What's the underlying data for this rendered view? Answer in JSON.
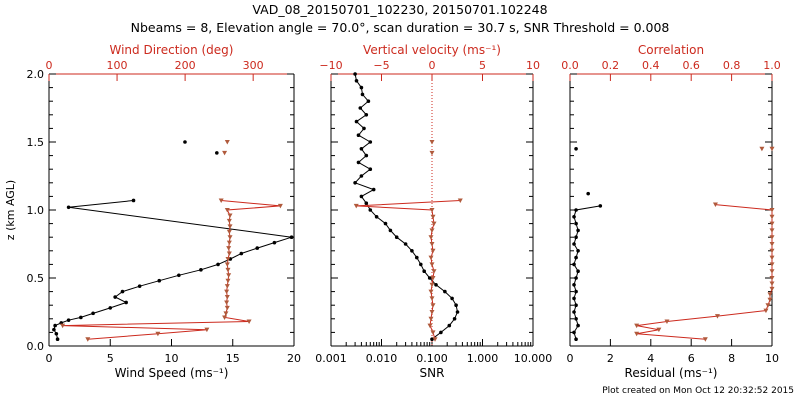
{
  "title_line1": "VAD_08_20150701_102230, 20150701.102248",
  "title_line2": "Nbeams = 8, Elevation angle = 70.0°, scan duration = 30.7 s, SNR Threshold = 0.008",
  "footer": "Plot created on Mon Oct 12 20:32:52 2015",
  "colors": {
    "black": "#000000",
    "red": "#cc2a1e",
    "brown": "#b05a3c"
  },
  "chart_data": [
    {
      "type": "line",
      "panel": "wind",
      "ylabel": "z (km AGL)",
      "ylim": [
        0,
        2.0
      ],
      "yticks": [
        "0.0",
        "0.5",
        "1.0",
        "1.5",
        "2.0"
      ],
      "bottom_axis": {
        "label": "Wind Speed (ms⁻¹)",
        "range": [
          0,
          20
        ],
        "ticks": [
          "0",
          "5",
          "10",
          "15",
          "20"
        ]
      },
      "top_axis": {
        "label": "Wind Direction (deg)",
        "range": [
          0,
          360
        ],
        "ticks": [
          "0",
          "100",
          "200",
          "300"
        ]
      },
      "series": [
        {
          "name": "Wind Speed",
          "axis": "bottom",
          "color": "black",
          "z": [
            0.05,
            0.09,
            0.12,
            0.15,
            0.17,
            0.19,
            0.21,
            0.24,
            0.28,
            0.32,
            0.36,
            0.4,
            0.44,
            0.48,
            0.52,
            0.56,
            0.6,
            0.64,
            0.68,
            0.72,
            0.76,
            0.8,
            1.02,
            1.07
          ],
          "values": [
            0.7,
            0.6,
            0.4,
            0.5,
            1.0,
            1.6,
            2.6,
            3.6,
            5.0,
            6.3,
            5.4,
            6.0,
            7.4,
            9.0,
            10.6,
            12.4,
            13.8,
            14.8,
            15.7,
            17.0,
            18.4,
            19.8,
            1.6,
            6.9
          ]
        },
        {
          "name": "Wind Speed (upper)",
          "axis": "bottom",
          "color": "black",
          "z": [
            1.42,
            1.5
          ],
          "values": [
            13.7,
            11.1
          ]
        },
        {
          "name": "Wind Direction",
          "axis": "top",
          "color": "red",
          "z": [
            0.05,
            0.09,
            0.12,
            0.15,
            0.18,
            0.21,
            0.24,
            0.28,
            0.32,
            0.36,
            0.4,
            0.44,
            0.48,
            0.52,
            0.56,
            0.6,
            0.64,
            0.68,
            0.72,
            0.76,
            0.8,
            0.84,
            0.88,
            0.92,
            0.96,
            1.0,
            1.03,
            1.07
          ],
          "values": [
            57,
            160,
            232,
            20,
            294,
            258,
            260,
            262,
            261,
            262,
            261,
            262,
            263,
            264,
            263,
            262,
            263,
            265,
            264,
            265,
            266,
            265,
            266,
            265,
            266,
            262,
            340,
            253
          ]
        },
        {
          "name": "Wind Direction (upper)",
          "axis": "top",
          "color": "red",
          "z": [
            1.42,
            1.5
          ],
          "values": [
            258,
            262
          ]
        }
      ]
    },
    {
      "type": "line",
      "panel": "snr",
      "xscale": "log",
      "bottom_axis": {
        "label": "SNR",
        "range": [
          0.001,
          10
        ],
        "ticks": [
          "0.001",
          "0.010",
          "0.100",
          "1.000",
          "10.000"
        ]
      },
      "top_axis": {
        "label": "Vertical velocity (ms⁻¹)",
        "range": [
          -10,
          10
        ],
        "ticks": [
          "−10",
          "−5",
          "0",
          "5",
          "10"
        ]
      },
      "series": [
        {
          "name": "SNR",
          "axis": "bottom",
          "color": "black",
          "z": [
            0.05,
            0.1,
            0.15,
            0.2,
            0.25,
            0.3,
            0.35,
            0.4,
            0.45,
            0.5,
            0.55,
            0.6,
            0.65,
            0.7,
            0.75,
            0.8,
            0.85,
            0.9,
            0.95,
            1.0,
            1.05,
            1.1,
            1.15,
            1.2,
            1.25,
            1.3,
            1.35,
            1.4,
            1.45,
            1.5,
            1.55,
            1.6,
            1.65,
            1.7,
            1.75,
            1.8,
            1.85,
            1.9,
            1.95,
            2.0
          ],
          "values": [
            0.1,
            0.15,
            0.22,
            0.28,
            0.32,
            0.3,
            0.25,
            0.18,
            0.12,
            0.09,
            0.07,
            0.06,
            0.05,
            0.04,
            0.03,
            0.02,
            0.015,
            0.012,
            0.008,
            0.006,
            0.005,
            0.004,
            0.007,
            0.003,
            0.004,
            0.006,
            0.0035,
            0.005,
            0.004,
            0.006,
            0.0035,
            0.0045,
            0.0032,
            0.005,
            0.0038,
            0.0055,
            0.0042,
            0.004,
            0.0032,
            0.003
          ]
        },
        {
          "name": "Vertical velocity",
          "axis": "top",
          "color": "red",
          "z": [
            0.05,
            0.1,
            0.15,
            0.2,
            0.25,
            0.3,
            0.35,
            0.4,
            0.45,
            0.5,
            0.55,
            0.6,
            0.65,
            0.7,
            0.75,
            0.8,
            0.85,
            0.9,
            0.95,
            1.0,
            1.03,
            1.07
          ],
          "values": [
            0.3,
            0.1,
            -0.2,
            -0.1,
            0.0,
            0.1,
            0.0,
            -0.1,
            0.0,
            0.1,
            0.2,
            0.0,
            -0.1,
            0.1,
            0.0,
            -0.1,
            0.0,
            0.2,
            0.1,
            0.0,
            -7.5,
            2.8
          ]
        },
        {
          "name": "Vertical velocity (upper)",
          "axis": "top",
          "color": "red",
          "z": [
            1.42,
            1.5
          ],
          "values": [
            0.0,
            0.0
          ]
        }
      ]
    },
    {
      "type": "line",
      "panel": "residual",
      "bottom_axis": {
        "label": "Residual (ms⁻¹)",
        "range": [
          0,
          10
        ],
        "ticks": [
          "0",
          "2",
          "4",
          "6",
          "8",
          "10"
        ]
      },
      "top_axis": {
        "label": "Correlation",
        "range": [
          0.0,
          1.0
        ],
        "ticks": [
          "0.0",
          "0.2",
          "0.4",
          "0.6",
          "0.8",
          "1.0"
        ]
      },
      "series": [
        {
          "name": "Residual",
          "axis": "bottom",
          "color": "black",
          "z": [
            0.05,
            0.1,
            0.15,
            0.2,
            0.25,
            0.3,
            0.35,
            0.4,
            0.45,
            0.5,
            0.55,
            0.6,
            0.65,
            0.7,
            0.75,
            0.8,
            0.85,
            0.9,
            0.95,
            1.0,
            1.03
          ],
          "values": [
            0.3,
            0.2,
            0.4,
            0.3,
            0.2,
            0.3,
            0.2,
            0.3,
            0.2,
            0.3,
            0.4,
            0.2,
            0.3,
            0.4,
            0.2,
            0.3,
            0.4,
            0.3,
            0.2,
            0.3,
            1.5
          ]
        },
        {
          "name": "Residual (upper)",
          "axis": "bottom",
          "color": "black",
          "z": [
            1.12,
            1.45
          ],
          "values": [
            0.9,
            0.3
          ]
        },
        {
          "name": "Correlation",
          "axis": "top",
          "color": "red",
          "z": [
            0.05,
            0.09,
            0.12,
            0.15,
            0.18,
            0.22,
            0.26,
            0.3,
            0.34,
            0.38,
            0.42,
            0.46,
            0.5,
            0.55,
            0.6,
            0.65,
            0.7,
            0.75,
            0.8,
            0.85,
            0.9,
            0.95,
            1.0,
            1.04
          ],
          "values": [
            0.67,
            0.33,
            0.44,
            0.33,
            0.48,
            0.73,
            0.97,
            0.98,
            0.99,
            0.99,
            1.0,
            1.0,
            1.0,
            1.0,
            1.0,
            1.0,
            1.0,
            1.0,
            1.0,
            1.0,
            1.0,
            1.0,
            1.0,
            0.72
          ]
        },
        {
          "name": "Correlation (upper)",
          "axis": "top",
          "color": "red",
          "z": [
            1.45,
            1.45
          ],
          "values": [
            0.95,
            1.0
          ]
        }
      ]
    }
  ]
}
